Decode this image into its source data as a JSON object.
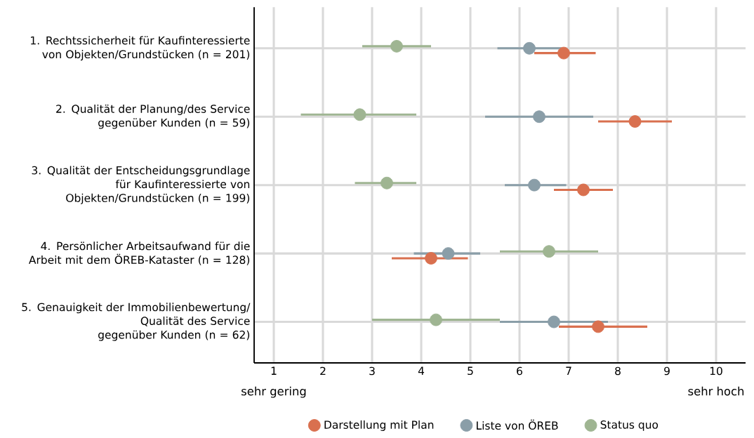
{
  "chart_data": {
    "type": "scatter",
    "orientation": "horizontal",
    "categories": [
      "1. Rechtssicherheit für Kaufinteressierte von Objekten/Grundstücken (n = 201)",
      "2. Qualität der Planung/des Service gegenüber Kunden (n = 59)",
      "3. Qualität der Entscheidungsgrundlage für Kaufinteressierte von Objekten/Grundstücken (n = 199)",
      "4. Persönlicher Arbeitsaufwand für die Arbeit mit dem ÖREB-Kataster (n = 128)",
      "5. Genauigkeit der Immobilienbewertung/ Qualität des Service gegenüber Kunden (n = 62)"
    ],
    "series": [
      {
        "name": "Darstellung mit Plan",
        "color": "#d9704f",
        "values": [
          6.9,
          8.35,
          7.3,
          4.2,
          7.6
        ],
        "errors": [
          [
            6.3,
            7.55
          ],
          [
            7.6,
            9.1
          ],
          [
            6.7,
            7.9
          ],
          [
            3.4,
            4.95
          ],
          [
            6.8,
            8.6
          ]
        ]
      },
      {
        "name": "Liste von ÖREB",
        "color": "#8a9ea8",
        "values": [
          6.2,
          6.4,
          6.3,
          4.55,
          6.7
        ],
        "errors": [
          [
            5.55,
            6.85
          ],
          [
            5.3,
            7.5
          ],
          [
            5.7,
            6.95
          ],
          [
            3.85,
            5.2
          ],
          [
            5.6,
            7.8
          ]
        ]
      },
      {
        "name": "Status quo",
        "color": "#9fb592",
        "values": [
          3.5,
          2.75,
          3.3,
          6.6,
          4.3
        ],
        "errors": [
          [
            2.8,
            4.2
          ],
          [
            1.55,
            3.9
          ],
          [
            2.65,
            3.9
          ],
          [
            5.6,
            7.6
          ],
          [
            3.0,
            5.6
          ]
        ]
      }
    ],
    "xlim": [
      0.6,
      10.6
    ],
    "xticks": [
      1,
      2,
      3,
      4,
      5,
      6,
      7,
      8,
      9,
      10
    ],
    "annotations": [
      "sehr gering",
      "sehr hoch"
    ],
    "grid": true,
    "legend": "bottom",
    "marker": "circle"
  }
}
